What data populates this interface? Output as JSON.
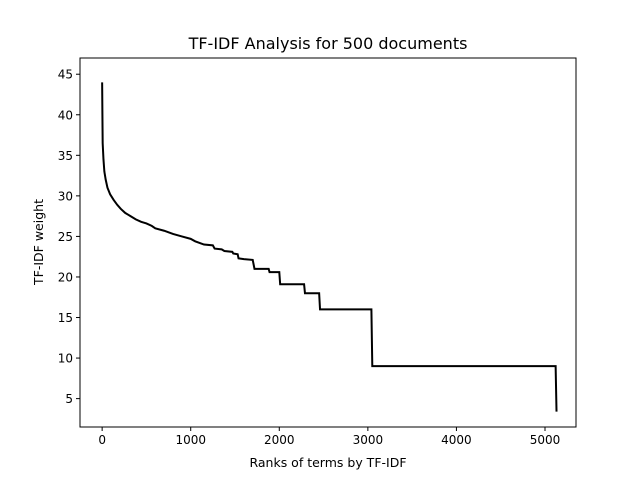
{
  "chart_data": {
    "type": "line",
    "title": "TF-IDF Analysis for 500 documents",
    "xlabel": "Ranks of terms by TF-IDF",
    "ylabel": "TF-IDF weight",
    "xlim": [
      -250,
      5350
    ],
    "ylim": [
      1.5,
      47
    ],
    "xticks": [
      0,
      1000,
      2000,
      3000,
      4000,
      5000
    ],
    "yticks": [
      5,
      10,
      15,
      20,
      25,
      30,
      35,
      40,
      45
    ],
    "grid": false,
    "legend": "none",
    "line_color": "#000000",
    "series": [
      {
        "points": [
          [
            0,
            44
          ],
          [
            3,
            40
          ],
          [
            6,
            36.5
          ],
          [
            15,
            34.5
          ],
          [
            25,
            33
          ],
          [
            40,
            32
          ],
          [
            60,
            31
          ],
          [
            90,
            30.2
          ],
          [
            130,
            29.5
          ],
          [
            170,
            28.9
          ],
          [
            210,
            28.4
          ],
          [
            260,
            27.9
          ],
          [
            320,
            27.5
          ],
          [
            380,
            27.1
          ],
          [
            440,
            26.8
          ],
          [
            500,
            26.6
          ],
          [
            560,
            26.3
          ],
          [
            600,
            26.0
          ],
          [
            700,
            25.7
          ],
          [
            800,
            25.3
          ],
          [
            900,
            25.0
          ],
          [
            1000,
            24.7
          ],
          [
            1050,
            24.4
          ],
          [
            1100,
            24.2
          ],
          [
            1150,
            24.0
          ],
          [
            1250,
            23.9
          ],
          [
            1270,
            23.5
          ],
          [
            1350,
            23.4
          ],
          [
            1380,
            23.2
          ],
          [
            1470,
            23.1
          ],
          [
            1480,
            22.9
          ],
          [
            1530,
            22.8
          ],
          [
            1540,
            22.3
          ],
          [
            1600,
            22.2
          ],
          [
            1700,
            22.1
          ],
          [
            1720,
            21.0
          ],
          [
            1880,
            21.0
          ],
          [
            1890,
            20.6
          ],
          [
            2000,
            20.6
          ],
          [
            2010,
            19.1
          ],
          [
            2280,
            19.1
          ],
          [
            2290,
            18.0
          ],
          [
            2450,
            18.0
          ],
          [
            2460,
            16.0
          ],
          [
            3040,
            16.0
          ],
          [
            3050,
            9.0
          ],
          [
            5120,
            9.0
          ],
          [
            5130,
            3.4
          ]
        ]
      }
    ]
  }
}
